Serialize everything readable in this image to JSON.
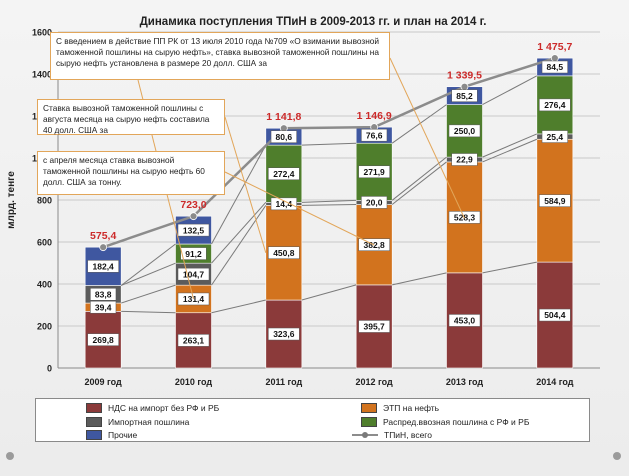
{
  "chart_data": {
    "type": "bar",
    "title": "Динамика поступления  ТПиН в 2009-2013 гг. и план на 2014 г.",
    "ylabel": "млрд. тенге",
    "ylim": [
      0,
      1600
    ],
    "yticks": [
      "0",
      "200",
      "400",
      "600",
      "800",
      "1000",
      "1200",
      "1400",
      "1600"
    ],
    "categories": [
      "2009 год",
      "2010 год",
      "2011 год",
      "2012 год",
      "2013 год",
      "2014 год"
    ],
    "series": [
      {
        "name": "НДС на импорт без РФ и РБ",
        "color": "#8b3a3a",
        "values": [
          269.8,
          263.1,
          323.6,
          395.7,
          453.0,
          504.4
        ],
        "labels": [
          "269,8",
          "263,1",
          "323,6",
          "395,7",
          "453,0",
          "504,4"
        ]
      },
      {
        "name": "ЭТП на нефть",
        "color": "#d2731e",
        "values": [
          39.4,
          131.4,
          450.8,
          382.8,
          528.3,
          584.9
        ],
        "labels": [
          "39,4",
          "131,4",
          "450,8",
          "382,8",
          "528,3",
          "584,9"
        ]
      },
      {
        "name": "Импортная пошлина",
        "color": "#5b5b5b",
        "values": [
          83.8,
          104.7,
          14.4,
          20.0,
          22.9,
          25.4
        ],
        "labels": [
          "83,8",
          "104,7",
          "14,4",
          "20,0",
          "22,9",
          "25,4"
        ]
      },
      {
        "name": "Распред.ввозная  пошлина с РФ и РБ",
        "color": "#4f7e2c",
        "values": [
          0,
          91.2,
          272.4,
          271.9,
          250.0,
          276.4
        ],
        "labels": [
          "",
          "91,2",
          "272,4",
          "271,9",
          "250,0",
          "276,4"
        ]
      },
      {
        "name": "Прочие",
        "color": "#3f57a0",
        "values": [
          182.4,
          132.5,
          80.6,
          76.6,
          85.2,
          84.5
        ],
        "labels": [
          "182,4",
          "132,5",
          "80,6",
          "76,6",
          "85,2",
          "84,5"
        ]
      }
    ],
    "total": {
      "name": "ТПиН, всего",
      "values": [
        575.4,
        723.0,
        1141.8,
        1146.9,
        1339.5,
        1475.7
      ],
      "labels": [
        "575,4",
        "723,0",
        "1 141,8",
        "1 146,9",
        "1 339,5",
        "1 475,7"
      ]
    },
    "annotations": [
      "С введением в действие ПП РК от 13 июля 2010 года №709 «О взимании вывозной таможенной  пошлины на сырую нефть», ставка вывозной таможенной пошлины на сырую нефть установлена в размере 20 долл. США за",
      "Ставка вывозной таможенной пошлины с августа месяца на сырую нефть составила 40 долл. США за",
      "с апреля месяца ставка вывозной таможенной пошлины на сырую нефть 60 долл. США за тонну."
    ],
    "grid": true,
    "legend_position": "bottom",
    "colors": {
      "total_label": "#cc2a2a",
      "total_line": "#8c8c8c"
    }
  }
}
